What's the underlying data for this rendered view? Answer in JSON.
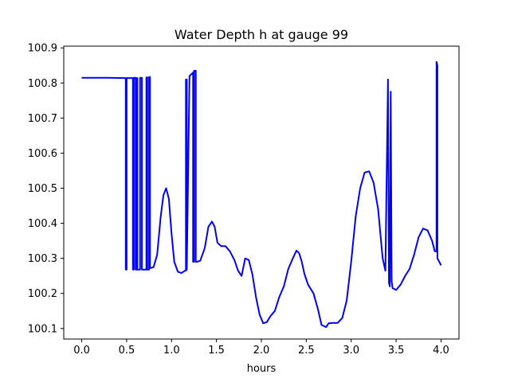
{
  "chart_data": {
    "type": "line",
    "title": "Water Depth h at gauge 99",
    "xlabel": "hours",
    "ylabel": "",
    "xlim": [
      -0.2,
      4.2
    ],
    "ylim": [
      100.07,
      100.905
    ],
    "x_ticks": [
      0.0,
      0.5,
      1.0,
      1.5,
      2.0,
      2.5,
      3.0,
      3.5,
      4.0
    ],
    "x_tick_labels": [
      "0.0",
      "0.5",
      "1.0",
      "1.5",
      "2.0",
      "2.5",
      "3.0",
      "3.5",
      "4.0"
    ],
    "y_ticks": [
      100.1,
      100.2,
      100.3,
      100.4,
      100.5,
      100.6,
      100.7,
      100.8,
      100.9
    ],
    "y_tick_labels": [
      "100.1",
      "100.2",
      "100.3",
      "100.4",
      "100.5",
      "100.6",
      "100.7",
      "100.8",
      "100.9"
    ],
    "grid": false,
    "legend": "none",
    "series": [
      {
        "color": "#0000ff",
        "x": [
          0.0,
          0.3,
          0.49,
          0.49,
          0.5,
          0.5,
          0.57,
          0.57,
          0.58,
          0.58,
          0.6,
          0.6,
          0.61,
          0.61,
          0.62,
          0.62,
          0.65,
          0.65,
          0.67,
          0.67,
          0.72,
          0.72,
          0.73,
          0.73,
          0.75,
          0.75,
          0.76,
          0.76,
          0.8,
          0.84,
          0.88,
          0.91,
          0.94,
          0.97,
          1.0,
          1.03,
          1.07,
          1.11,
          1.15,
          1.16,
          1.16,
          1.17,
          1.17,
          1.2,
          1.24,
          1.24,
          1.25,
          1.25,
          1.27,
          1.27,
          1.28,
          1.28,
          1.32,
          1.37,
          1.41,
          1.45,
          1.48,
          1.51,
          1.55,
          1.6,
          1.65,
          1.7,
          1.74,
          1.78,
          1.82,
          1.86,
          1.9,
          1.94,
          1.98,
          2.02,
          2.06,
          2.1,
          2.15,
          2.2,
          2.25,
          2.3,
          2.35,
          2.39,
          2.42,
          2.45,
          2.48,
          2.52,
          2.58,
          2.63,
          2.67,
          2.72,
          2.75,
          2.8,
          2.85,
          2.9,
          2.95,
          3.0,
          3.05,
          3.1,
          3.15,
          3.2,
          3.25,
          3.3,
          3.35,
          3.38,
          3.41,
          3.41,
          3.42,
          3.43,
          3.44,
          3.44,
          3.45,
          3.45,
          3.46,
          3.5,
          3.55,
          3.6,
          3.65,
          3.7,
          3.75,
          3.8,
          3.85,
          3.9,
          3.93,
          3.95,
          3.95,
          3.96,
          3.96,
          3.98,
          4.0
        ],
        "y": [
          100.815,
          100.815,
          100.814,
          100.268,
          100.268,
          100.814,
          100.814,
          100.268,
          100.268,
          100.815,
          100.815,
          100.268,
          100.268,
          100.814,
          100.814,
          100.268,
          100.268,
          100.815,
          100.815,
          100.268,
          100.268,
          100.816,
          100.816,
          100.268,
          100.268,
          100.817,
          100.817,
          100.272,
          100.275,
          100.31,
          100.42,
          100.48,
          100.5,
          100.47,
          100.37,
          100.29,
          100.262,
          100.258,
          100.265,
          100.265,
          100.81,
          100.81,
          100.268,
          100.82,
          100.83,
          100.29,
          100.29,
          100.835,
          100.835,
          100.29,
          100.29,
          100.29,
          100.293,
          100.33,
          100.39,
          100.405,
          100.39,
          100.345,
          100.335,
          100.335,
          100.32,
          100.295,
          100.265,
          100.25,
          100.3,
          100.295,
          100.255,
          100.19,
          100.14,
          100.115,
          100.118,
          100.135,
          100.15,
          100.19,
          100.22,
          100.27,
          100.3,
          100.322,
          100.315,
          100.29,
          100.255,
          100.225,
          100.2,
          100.155,
          100.11,
          100.104,
          100.115,
          100.116,
          100.116,
          100.13,
          100.18,
          100.29,
          100.42,
          100.5,
          100.545,
          100.548,
          100.515,
          100.44,
          100.3,
          100.265,
          100.81,
          100.79,
          100.23,
          100.22,
          100.775,
          100.775,
          100.235,
          100.235,
          100.215,
          100.21,
          100.225,
          100.25,
          100.27,
          100.31,
          100.36,
          100.385,
          100.38,
          100.35,
          100.32,
          100.32,
          100.86,
          100.85,
          100.3,
          100.29,
          100.28
        ]
      }
    ]
  }
}
